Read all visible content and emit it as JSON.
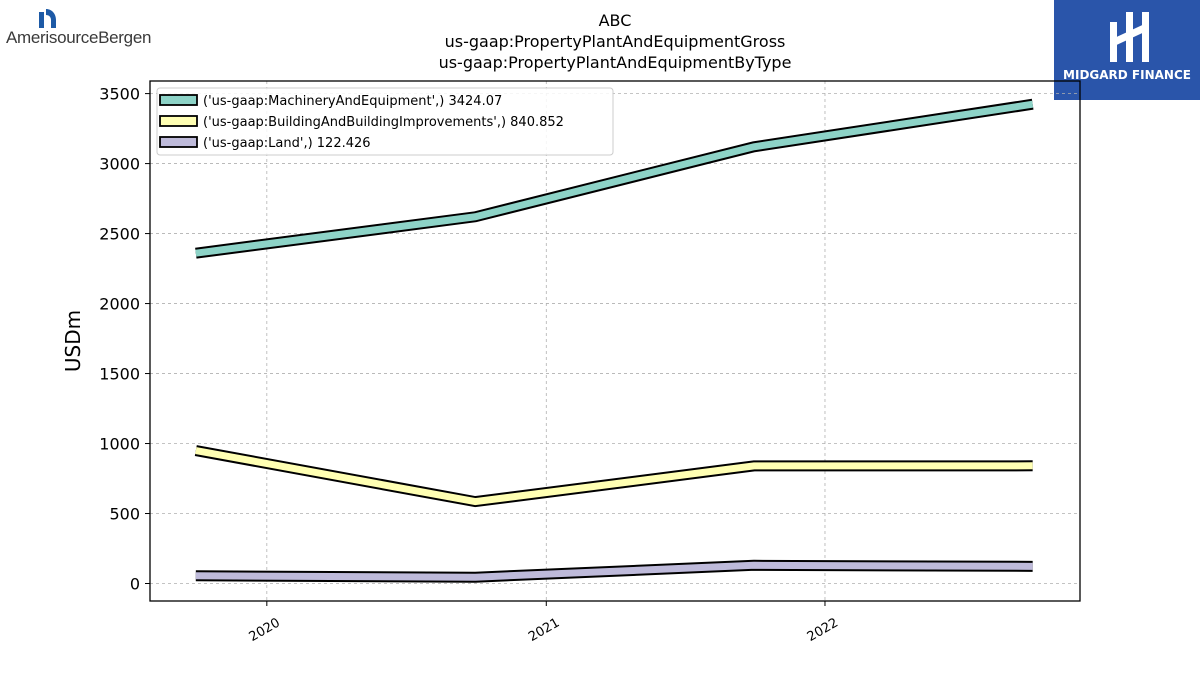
{
  "header": {
    "title_line1": "ABC",
    "title_line2": "us-gaap:PropertyPlantAndEquipmentGross",
    "title_line3": "us-gaap:PropertyPlantAndEquipmentByType"
  },
  "logos": {
    "left_text": "AmerisourceBergen",
    "right_text": "MIDGARD FINANCE",
    "right_bg": "#2a55aa",
    "left_mark_color": "#1d5aa6"
  },
  "chart_data": {
    "type": "line",
    "title": "ABC\nus-gaap:PropertyPlantAndEquipmentGross\nus-gaap:PropertyPlantAndEquipmentByType",
    "xlabel": "",
    "ylabel": "USDm",
    "x_ticks": [
      "2020",
      "2021",
      "2022"
    ],
    "x_tick_dates": [
      "2020-01-01",
      "2021-01-01",
      "2022-01-01"
    ],
    "x_range": [
      "2019-08-01",
      "2022-12-01"
    ],
    "x": [
      "2019-09-30",
      "2020-09-30",
      "2021-09-30",
      "2022-09-30"
    ],
    "ylim": [
      -125,
      3590
    ],
    "y_ticks": [
      0,
      500,
      1000,
      1500,
      2000,
      2500,
      3000,
      3500
    ],
    "grid": true,
    "legend_placement": "top-left",
    "series": [
      {
        "name": "('us-gaap:MachineryAndEquipment',) 3424.07",
        "color": "#8dd3c7",
        "values": [
          2360,
          2620,
          3120,
          3424.07
        ]
      },
      {
        "name": "('us-gaap:BuildingAndBuildingImprovements',) 840.852",
        "color": "#ffffb3",
        "values": [
          950,
          585,
          840,
          840.852
        ]
      },
      {
        "name": "('us-gaap:Land',) 122.426",
        "color": "#bebada",
        "values": [
          55,
          45,
          130,
          122.426
        ]
      }
    ]
  }
}
